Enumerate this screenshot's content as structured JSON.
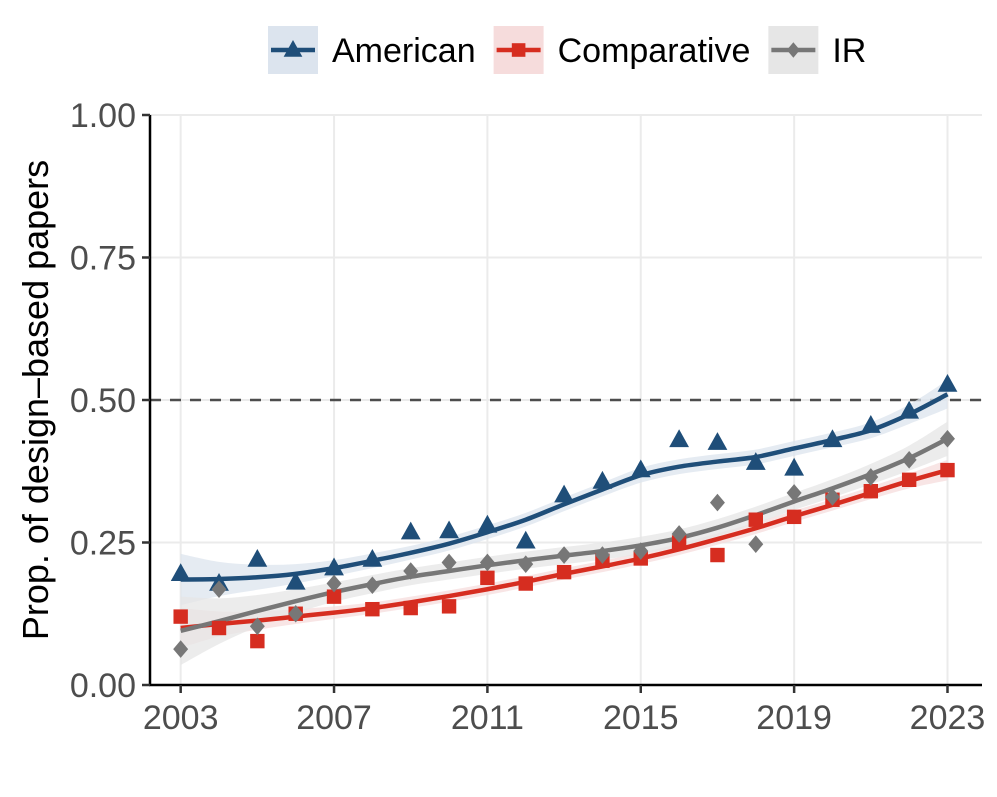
{
  "chart_data": {
    "type": "scatter",
    "title": "",
    "xlabel": "",
    "ylabel": "Prop. of design–based papers",
    "xlim": [
      2002.2,
      2023.9
    ],
    "ylim": [
      0,
      1
    ],
    "x_ticks": [
      2003,
      2007,
      2011,
      2015,
      2019,
      2023
    ],
    "y_ticks": [
      0.0,
      0.25,
      0.5,
      0.75,
      1.0
    ],
    "y_tick_labels": [
      "0.00",
      "0.25",
      "0.50",
      "0.75",
      "1.00"
    ],
    "reference_line": {
      "y": 0.5,
      "style": "dashed"
    },
    "grid": true,
    "legend": {
      "position": "top"
    },
    "x": [
      2003,
      2004,
      2005,
      2006,
      2007,
      2008,
      2009,
      2010,
      2011,
      2012,
      2013,
      2014,
      2015,
      2016,
      2017,
      2018,
      2019,
      2020,
      2021,
      2022,
      2023
    ],
    "series": [
      {
        "name": "American",
        "marker": "triangle",
        "color": "#1f4e79",
        "band_color": "#dce4ee",
        "values": [
          0.195,
          0.178,
          0.22,
          0.18,
          0.205,
          0.22,
          0.268,
          0.27,
          0.28,
          0.252,
          0.333,
          0.357,
          0.377,
          0.43,
          0.425,
          0.39,
          0.38,
          0.43,
          0.455,
          0.48,
          0.527
        ],
        "smooth": [
          0.185,
          0.186,
          0.189,
          0.195,
          0.205,
          0.218,
          0.232,
          0.248,
          0.268,
          0.29,
          0.317,
          0.343,
          0.368,
          0.383,
          0.392,
          0.4,
          0.415,
          0.43,
          0.447,
          0.475,
          0.51
        ],
        "smooth_se": [
          0.045,
          0.03,
          0.022,
          0.017,
          0.014,
          0.013,
          0.012,
          0.012,
          0.012,
          0.012,
          0.012,
          0.012,
          0.013,
          0.013,
          0.013,
          0.013,
          0.013,
          0.013,
          0.014,
          0.017,
          0.025
        ]
      },
      {
        "name": "Comparative",
        "marker": "square",
        "color": "#d62d20",
        "band_color": "#f6dcdc",
        "values": [
          0.12,
          0.1,
          0.077,
          0.125,
          0.155,
          0.133,
          0.135,
          0.138,
          0.188,
          0.178,
          0.198,
          0.218,
          0.222,
          0.25,
          0.228,
          0.29,
          0.295,
          0.325,
          0.34,
          0.36,
          0.377
        ],
        "smooth": [
          0.1,
          0.107,
          0.113,
          0.12,
          0.127,
          0.135,
          0.145,
          0.156,
          0.168,
          0.181,
          0.195,
          0.208,
          0.222,
          0.238,
          0.256,
          0.275,
          0.296,
          0.316,
          0.337,
          0.358,
          0.377
        ],
        "smooth_se": [
          0.035,
          0.022,
          0.016,
          0.013,
          0.011,
          0.01,
          0.01,
          0.01,
          0.01,
          0.01,
          0.01,
          0.01,
          0.01,
          0.01,
          0.01,
          0.01,
          0.01,
          0.01,
          0.011,
          0.013,
          0.018
        ]
      },
      {
        "name": "IR",
        "marker": "diamond",
        "color": "#777777",
        "band_color": "#e6e6e6",
        "values": [
          0.063,
          0.168,
          0.103,
          0.125,
          0.178,
          0.175,
          0.2,
          0.215,
          0.215,
          0.212,
          0.228,
          0.228,
          0.235,
          0.265,
          0.32,
          0.247,
          0.337,
          0.33,
          0.365,
          0.395,
          0.432
        ],
        "smooth": [
          0.095,
          0.112,
          0.13,
          0.147,
          0.163,
          0.177,
          0.19,
          0.2,
          0.21,
          0.219,
          0.227,
          0.235,
          0.245,
          0.258,
          0.276,
          0.298,
          0.322,
          0.345,
          0.37,
          0.398,
          0.432
        ],
        "smooth_se": [
          0.06,
          0.04,
          0.028,
          0.021,
          0.017,
          0.016,
          0.015,
          0.015,
          0.015,
          0.015,
          0.015,
          0.015,
          0.015,
          0.015,
          0.015,
          0.015,
          0.015,
          0.016,
          0.018,
          0.022,
          0.03
        ]
      }
    ]
  }
}
